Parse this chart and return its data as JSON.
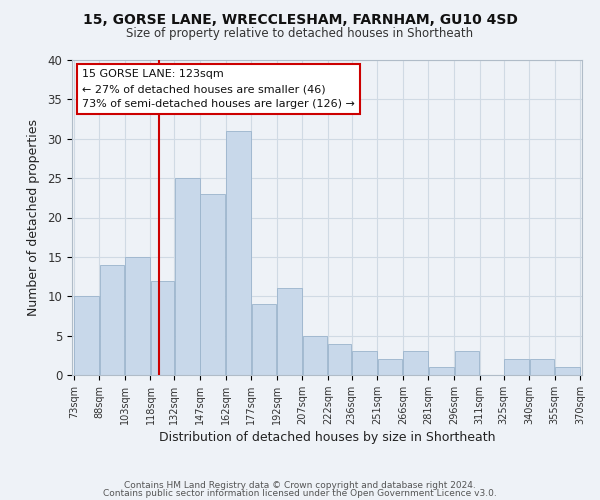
{
  "title1": "15, GORSE LANE, WRECCLESHAM, FARNHAM, GU10 4SD",
  "title2": "Size of property relative to detached houses in Shortheath",
  "xlabel": "Distribution of detached houses by size in Shortheath",
  "ylabel": "Number of detached properties",
  "bar_color": "#c8d8ea",
  "bar_edge_color": "#9ab4cc",
  "grid_color": "#d0dae4",
  "background_color": "#eef2f7",
  "vline_x": 123,
  "vline_color": "#cc0000",
  "bin_edges": [
    73,
    88,
    103,
    118,
    132,
    147,
    162,
    177,
    192,
    207,
    222,
    236,
    251,
    266,
    281,
    296,
    311,
    325,
    340,
    355,
    370
  ],
  "bin_heights": [
    10,
    14,
    15,
    12,
    25,
    23,
    31,
    9,
    11,
    5,
    4,
    3,
    2,
    3,
    1,
    3,
    0,
    2,
    2,
    1
  ],
  "tick_labels": [
    "73sqm",
    "88sqm",
    "103sqm",
    "118sqm",
    "132sqm",
    "147sqm",
    "162sqm",
    "177sqm",
    "192sqm",
    "207sqm",
    "222sqm",
    "236sqm",
    "251sqm",
    "266sqm",
    "281sqm",
    "296sqm",
    "311sqm",
    "325sqm",
    "340sqm",
    "355sqm",
    "370sqm"
  ],
  "ylim": [
    0,
    40
  ],
  "yticks": [
    0,
    5,
    10,
    15,
    20,
    25,
    30,
    35,
    40
  ],
  "annotation_title": "15 GORSE LANE: 123sqm",
  "annotation_line1": "← 27% of detached houses are smaller (46)",
  "annotation_line2": "73% of semi-detached houses are larger (126) →",
  "annotation_box_color": "#ffffff",
  "annotation_box_edge": "#cc0000",
  "footer1": "Contains HM Land Registry data © Crown copyright and database right 2024.",
  "footer2": "Contains public sector information licensed under the Open Government Licence v3.0."
}
